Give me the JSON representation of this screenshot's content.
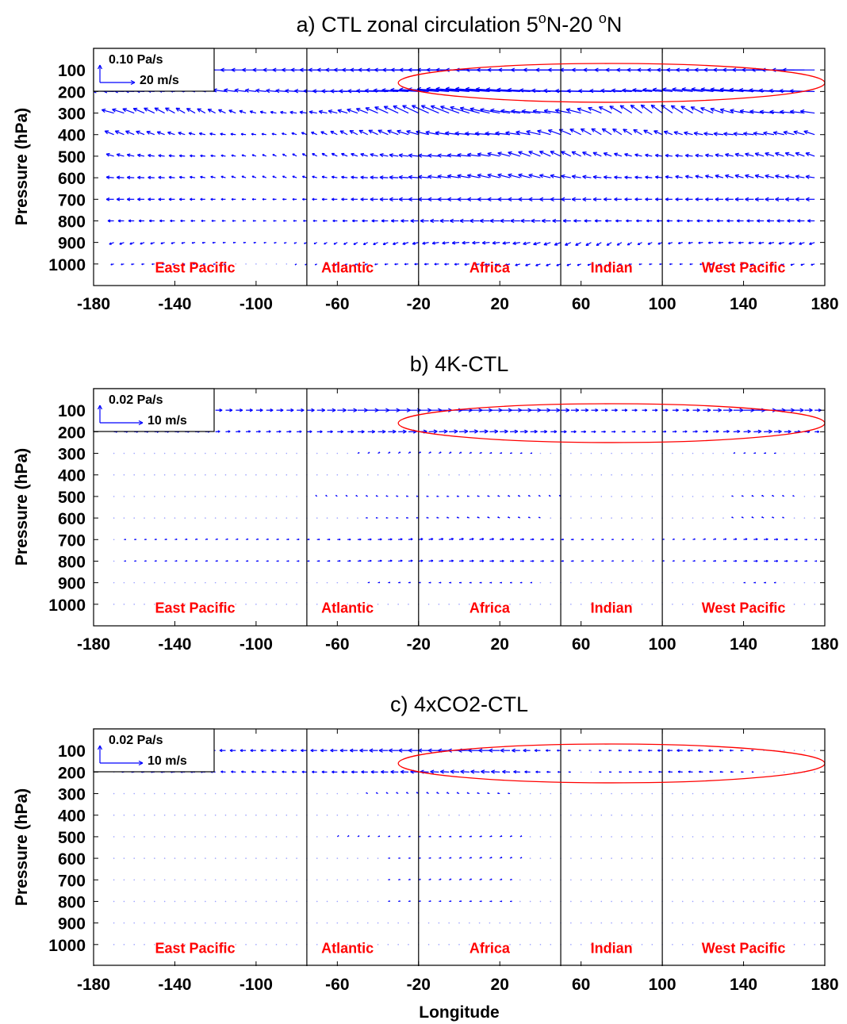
{
  "figure": {
    "xlabel": "Longitude",
    "ylabel": "Pressure (hPa)",
    "xticks": [
      "-180",
      "-140",
      "-100",
      "-60",
      "-20",
      "20",
      "60",
      "100",
      "140",
      "180"
    ],
    "yticks": [
      "100",
      "200",
      "300",
      "400",
      "500",
      "600",
      "700",
      "800",
      "900",
      "1000"
    ],
    "colors": {
      "vectors": "#0000ff",
      "highlight": "#ff0000",
      "labels": "#ff0000",
      "dividers": "#000000"
    }
  },
  "chart_data": [
    {
      "type": "quiver",
      "title": "a) CTL zonal circulation 5°N-20 °N",
      "title_parts": [
        "a) CTL zonal circulation 5",
        "o",
        "N-20 ",
        "o",
        "N"
      ],
      "xlabel": "",
      "ylabel": "Pressure (hPa)",
      "xlim": [
        -180,
        180
      ],
      "ylim": [
        1100,
        0
      ],
      "key": {
        "vertical": "0.10 Pa/s",
        "horizontal": "20 m/s"
      },
      "regions": [
        "East Pacific",
        "Atlantic",
        "Africa",
        "Indian",
        "West Pacific"
      ],
      "region_lon": [
        -130,
        -55,
        15,
        75,
        140
      ],
      "dividers_lon": [
        -75,
        -20,
        50,
        100
      ],
      "highlight": {
        "lon_range": [
          -30,
          180
        ],
        "p_range": [
          70,
          250
        ]
      },
      "levels": [
        100,
        200,
        300,
        400,
        500,
        600,
        700,
        800,
        900,
        1000
      ],
      "level_u": [
        -18,
        -14,
        -8,
        -6,
        -5,
        -5,
        -5,
        -4,
        -3,
        -2
      ],
      "level_w": [
        0.0,
        0.02,
        0.06,
        0.04,
        0.03,
        0.02,
        0.0,
        0.0,
        -0.02,
        -0.01
      ],
      "lon_factor": [
        [
          -180,
          0.9
        ],
        [
          -90,
          0.7
        ],
        [
          -20,
          1.2
        ],
        [
          40,
          1.6
        ],
        [
          100,
          1.3
        ],
        [
          180,
          1.0
        ]
      ]
    },
    {
      "type": "quiver",
      "title": "b) 4K-CTL",
      "xlabel": "",
      "ylabel": "Pressure (hPa)",
      "xlim": [
        -180,
        180
      ],
      "ylim": [
        1100,
        0
      ],
      "key": {
        "vertical": "0.02 Pa/s",
        "horizontal": "10 m/s"
      },
      "regions": [
        "East Pacific",
        "Atlantic",
        "Africa",
        "Indian",
        "West Pacific"
      ],
      "region_lon": [
        -130,
        -55,
        15,
        75,
        140
      ],
      "dividers_lon": [
        -75,
        -20,
        50,
        100
      ],
      "highlight": {
        "lon_range": [
          -30,
          180
        ],
        "p_range": [
          70,
          250
        ]
      },
      "levels": [
        100,
        200,
        300,
        400,
        500,
        600,
        700,
        800,
        900,
        1000
      ],
      "level_u": [
        6,
        4,
        1,
        0,
        -1,
        -1,
        2,
        2,
        1,
        0
      ],
      "level_w": [
        0.0,
        0.004,
        0.01,
        0.012,
        0.01,
        0.008,
        0.006,
        0.004,
        0.002,
        0.0
      ],
      "lon_factor": [
        [
          -180,
          0.4
        ],
        [
          -110,
          1.0
        ],
        [
          -40,
          1.3
        ],
        [
          30,
          1.2
        ],
        [
          90,
          0.8
        ],
        [
          150,
          1.3
        ],
        [
          180,
          0.5
        ]
      ]
    },
    {
      "type": "quiver",
      "title": "c) 4xCO2-CTL",
      "xlabel": "Longitude",
      "ylabel": "Pressure (hPa)",
      "xlim": [
        -180,
        180
      ],
      "ylim": [
        1100,
        0
      ],
      "key": {
        "vertical": "0.02 Pa/s",
        "horizontal": "10 m/s"
      },
      "regions": [
        "East Pacific",
        "Atlantic",
        "Africa",
        "Indian",
        "West Pacific"
      ],
      "region_lon": [
        -130,
        -55,
        15,
        75,
        140
      ],
      "dividers_lon": [
        -75,
        -20,
        50,
        100
      ],
      "highlight": {
        "lon_range": [
          -30,
          180
        ],
        "p_range": [
          70,
          250
        ]
      },
      "levels": [
        100,
        200,
        300,
        400,
        500,
        600,
        700,
        800,
        900,
        1000
      ],
      "level_u": [
        -5,
        -4,
        -1,
        0,
        1,
        1,
        1,
        1,
        0,
        0
      ],
      "level_w": [
        0.0,
        0.004,
        0.01,
        0.012,
        0.01,
        0.008,
        0.006,
        0.003,
        0.001,
        0.0
      ],
      "lon_factor": [
        [
          -180,
          0.1
        ],
        [
          -120,
          1.0
        ],
        [
          -75,
          1.1
        ],
        [
          20,
          1.3
        ],
        [
          60,
          0.3
        ],
        [
          110,
          1.0
        ],
        [
          150,
          0.2
        ],
        [
          180,
          0.1
        ]
      ]
    }
  ]
}
